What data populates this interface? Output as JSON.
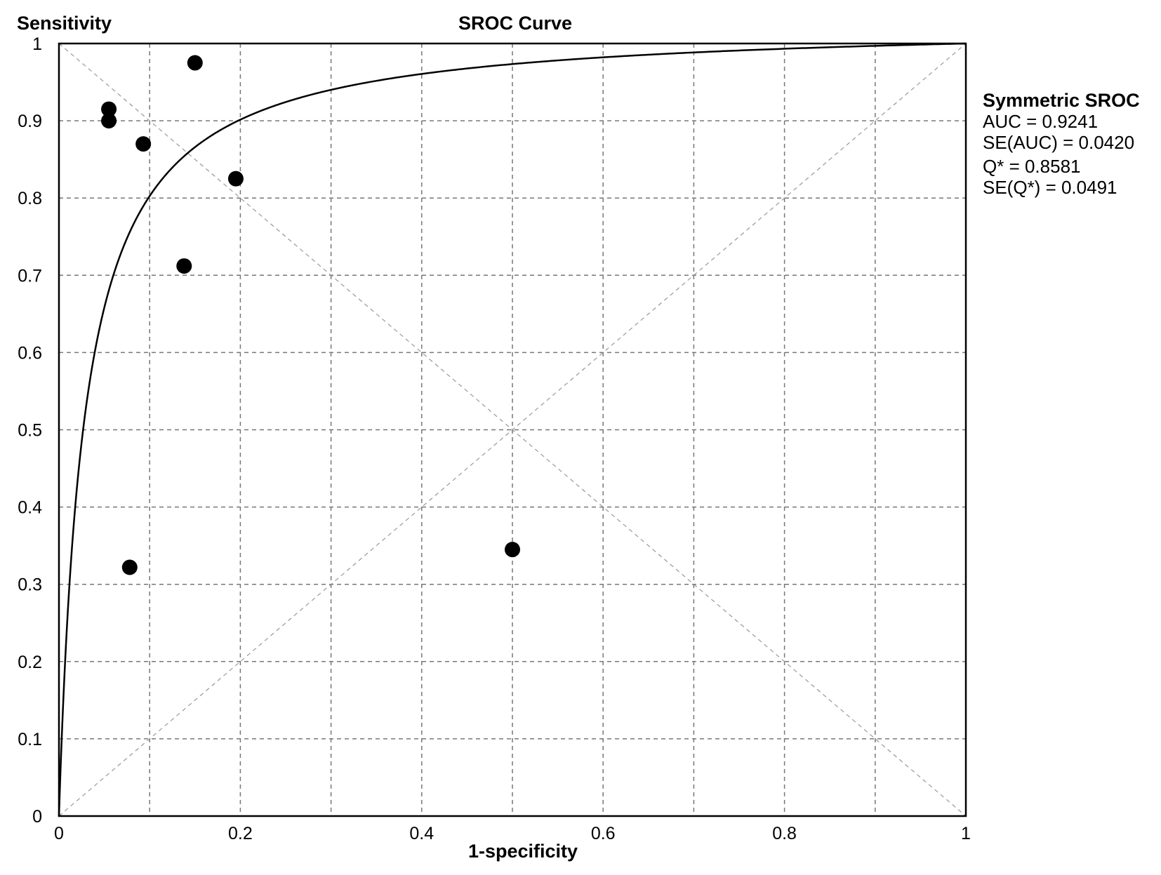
{
  "chart_data": {
    "type": "scatter",
    "title": "SROC Curve",
    "xlabel": "1-specificity",
    "ylabel": "Sensitivity",
    "xlim": [
      0,
      1
    ],
    "ylim": [
      0,
      1
    ],
    "grid": true,
    "x_ticks": [
      "0",
      "0.2",
      "0.4",
      "0.6",
      "0.8",
      "1"
    ],
    "y_ticks": [
      "0",
      "0.1",
      "0.2",
      "0.3",
      "0.4",
      "0.5",
      "0.6",
      "0.7",
      "0.8",
      "0.9",
      "1"
    ],
    "points": [
      {
        "x": 0.15,
        "y": 0.975
      },
      {
        "x": 0.055,
        "y": 0.915
      },
      {
        "x": 0.055,
        "y": 0.9
      },
      {
        "x": 0.093,
        "y": 0.87
      },
      {
        "x": 0.195,
        "y": 0.825
      },
      {
        "x": 0.138,
        "y": 0.712
      },
      {
        "x": 0.078,
        "y": 0.322
      },
      {
        "x": 0.5,
        "y": 0.345
      }
    ],
    "curve": {
      "type": "symmetric_sroc",
      "auc": 0.9241
    },
    "legend": {
      "position": "right",
      "title": "Symmetric SROC",
      "lines": [
        "AUC = 0.9241",
        "SE(AUC) = 0.0420",
        "Q* = 0.8581",
        "SE(Q*) = 0.0491"
      ]
    }
  }
}
